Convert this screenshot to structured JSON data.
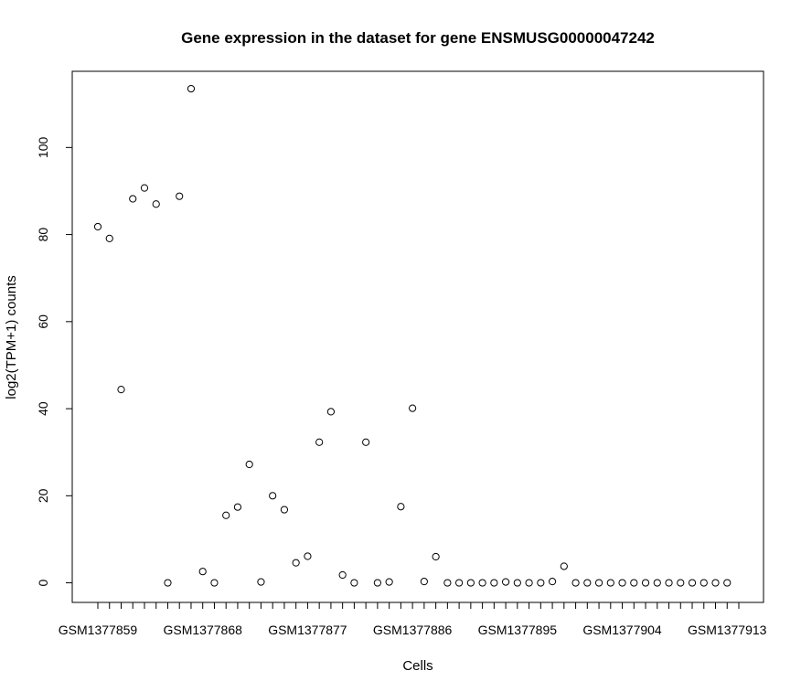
{
  "chart_data": {
    "type": "scatter",
    "title": "Gene expression in the dataset for gene ENSMUSG00000047242",
    "xlabel": "Cells",
    "ylabel": "log2(TPM+1) counts",
    "ylim": [
      -4.5,
      117.5
    ],
    "y_ticks": [
      0,
      20,
      40,
      60,
      80,
      100
    ],
    "x_tick_count": 56,
    "x_tick_labels": [
      {
        "index": 1,
        "label": "GSM1377859"
      },
      {
        "index": 10,
        "label": "GSM1377868"
      },
      {
        "index": 19,
        "label": "GSM1377877"
      },
      {
        "index": 28,
        "label": "GSM1377886"
      },
      {
        "index": 37,
        "label": "GSM1377895"
      },
      {
        "index": 46,
        "label": "GSM1377904"
      },
      {
        "index": 55,
        "label": "GSM1377913"
      }
    ],
    "grid": false,
    "legend": "none",
    "point_style": "open-circle",
    "color": "#000000",
    "values": [
      81.8,
      79.1,
      44.4,
      88.2,
      90.7,
      87.0,
      0.0,
      88.8,
      113.5,
      2.6,
      0.0,
      15.5,
      17.4,
      27.2,
      0.2,
      20.0,
      16.8,
      4.6,
      6.1,
      32.3,
      39.3,
      1.8,
      0.0,
      32.3,
      0.0,
      0.2,
      17.5,
      40.1,
      0.3,
      6.0,
      0.0,
      0.0,
      0.0,
      0.0,
      0.0,
      0.2,
      0.0,
      0.0,
      0.0,
      0.3,
      3.8,
      0.0,
      0.0,
      0.0,
      0.0,
      0.0,
      0.0,
      0.0,
      0.0,
      0.0,
      0.0,
      0.0,
      0.0,
      0.0,
      0.0
    ]
  }
}
